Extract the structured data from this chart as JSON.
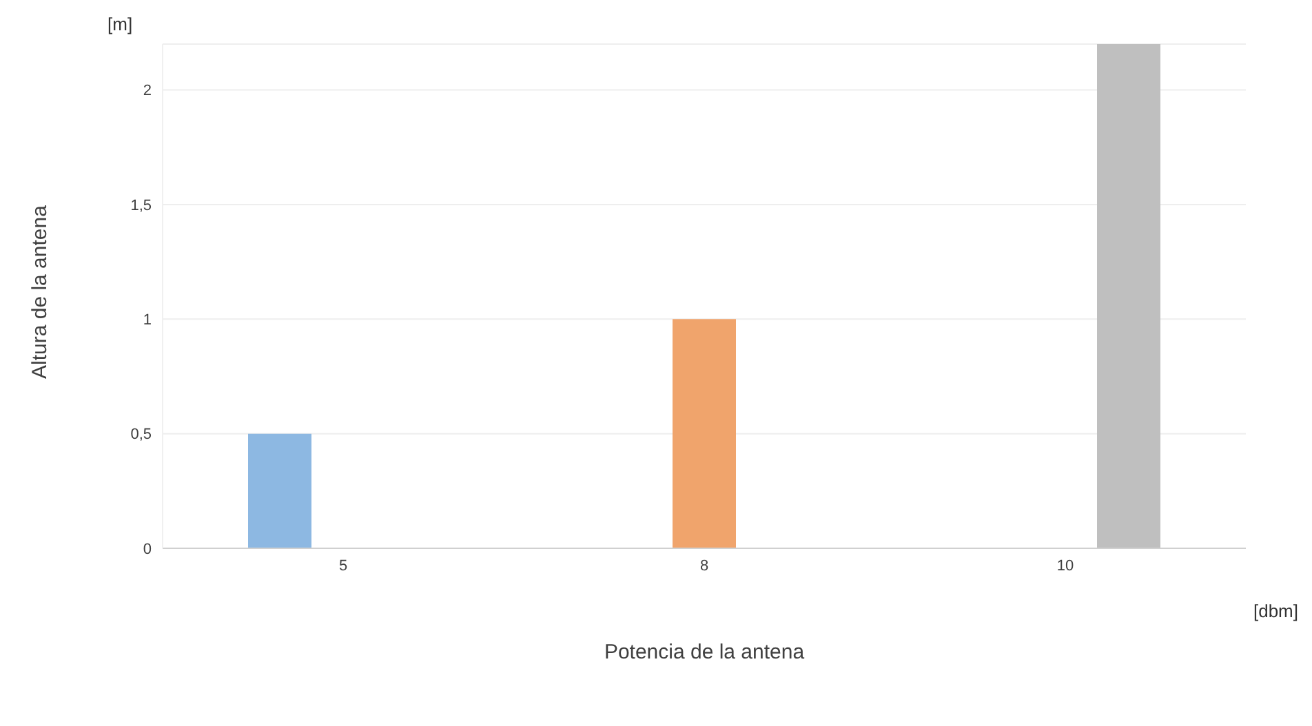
{
  "chart_data": {
    "type": "bar",
    "xlabel": "Potencia de la antena",
    "ylabel": "Altura de la antena",
    "categories": [
      "5",
      "8",
      "10"
    ],
    "series": [
      {
        "color": "#8db8e2",
        "values": [
          0.5,
          null,
          null
        ]
      },
      {
        "color": "#f0a46c",
        "values": [
          null,
          1,
          null
        ]
      },
      {
        "color": "#bfbfbf",
        "values": [
          null,
          null,
          2.2
        ]
      }
    ],
    "ylim": [
      0,
      2.2
    ],
    "yticks": [
      0,
      {
        "value": 0.5,
        "label": "0,5"
      },
      1,
      {
        "value": 1.5,
        "label": "1,5"
      },
      2
    ],
    "grid": "y",
    "annotations": [
      "[m]",
      "[dbm]"
    ]
  }
}
